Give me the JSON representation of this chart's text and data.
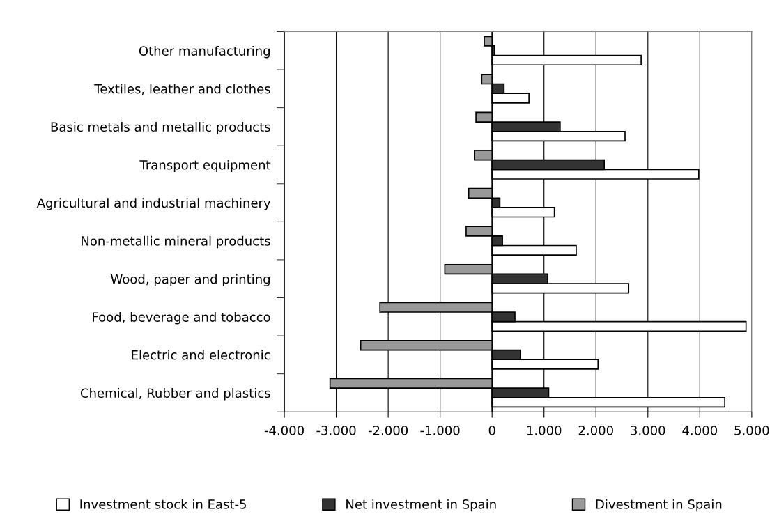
{
  "chart_data": {
    "type": "bar",
    "orientation": "horizontal",
    "categories": [
      "Other manufacturing",
      "Textiles, leather and clothes",
      "Basic metals and metallic products",
      "Transport equipment",
      "Agricultural and industrial machinery",
      "Non-metallic mineral products",
      "Wood, paper and printing",
      "Food, beverage and tobacco",
      "Electric and electronic",
      "Chemical, Rubber and plastics"
    ],
    "series": [
      {
        "name": "Investment stock in East-5",
        "color": "#ffffff",
        "values": [
          2870,
          710,
          2560,
          3980,
          1200,
          1620,
          2630,
          4890,
          2040,
          4480
        ]
      },
      {
        "name": "Net investment in Spain",
        "color": "#333333",
        "values": [
          50,
          230,
          1310,
          2160,
          150,
          200,
          1070,
          440,
          550,
          1090
        ]
      },
      {
        "name": "Divestment in Spain",
        "color": "#999999",
        "values": [
          -150,
          -200,
          -310,
          -340,
          -450,
          -500,
          -910,
          -2160,
          -2530,
          -3120
        ]
      }
    ],
    "xlim": [
      -4000,
      5000
    ],
    "xticks": [
      {
        "value": -4000,
        "label": "-4.000"
      },
      {
        "value": -3000,
        "label": "-3.000"
      },
      {
        "value": -2000,
        "label": "-2.000"
      },
      {
        "value": -1000,
        "label": "-1.000"
      },
      0,
      {
        "value": 1000,
        "label": "1.000"
      },
      {
        "value": 2000,
        "label": "2.000"
      },
      {
        "value": 3000,
        "label": "3.000"
      },
      {
        "value": 4000,
        "label": "4.000"
      },
      {
        "value": 5000,
        "label": "5.000"
      }
    ],
    "grid": "x",
    "legend": "bottom"
  }
}
